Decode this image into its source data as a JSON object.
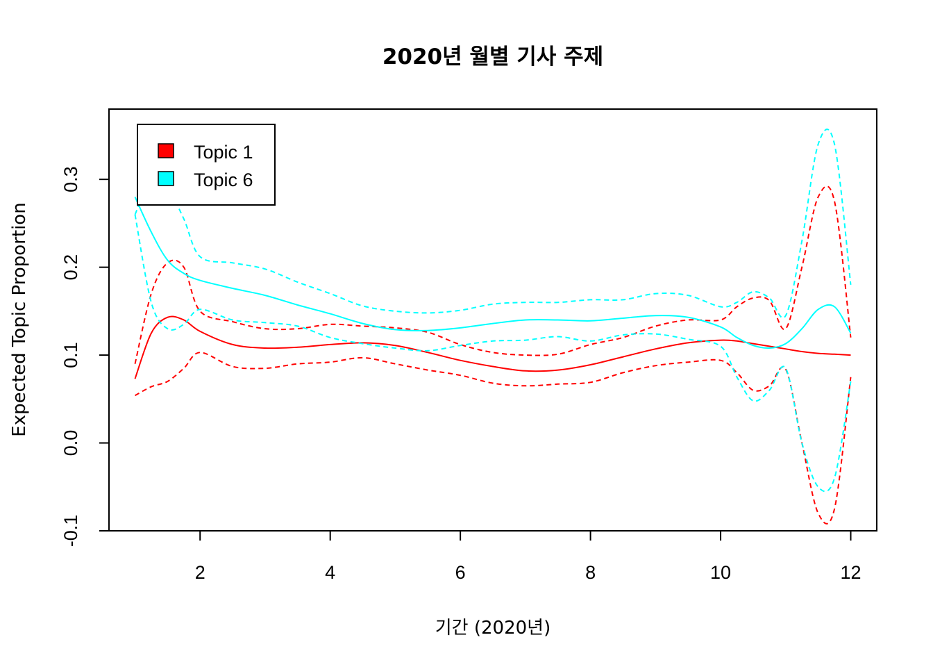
{
  "chart_data": {
    "type": "line",
    "title": "2020년 월별 기사 주제",
    "xlabel": "기간 (2020년)",
    "ylabel": "Expected Topic Proportion",
    "xlim": [
      0.6,
      12.4
    ],
    "ylim": [
      -0.1,
      0.38
    ],
    "x_ticks": [
      2,
      4,
      6,
      8,
      10,
      12
    ],
    "y_ticks": [
      -0.1,
      0.0,
      0.1,
      0.2,
      0.3
    ],
    "x_tick_labels": [
      "2",
      "4",
      "6",
      "8",
      "10",
      "12"
    ],
    "y_tick_labels": [
      "-0.1",
      "0.0",
      "0.1",
      "0.2",
      "0.3"
    ],
    "legend_position": "top-left",
    "x": [
      1,
      1.25,
      1.5,
      1.75,
      2,
      2.5,
      3,
      3.5,
      4,
      4.5,
      5,
      5.5,
      6,
      6.5,
      7,
      7.5,
      8,
      8.5,
      9,
      9.5,
      10,
      10.25,
      10.5,
      10.75,
      11,
      11.25,
      11.5,
      11.75,
      12
    ],
    "series": [
      {
        "name": "Topic 1",
        "color": "#FF0000",
        "mean": [
          0.073,
          0.125,
          0.143,
          0.14,
          0.127,
          0.112,
          0.108,
          0.109,
          0.112,
          0.114,
          0.111,
          0.103,
          0.094,
          0.087,
          0.082,
          0.083,
          0.089,
          0.098,
          0.107,
          0.114,
          0.117,
          0.116,
          0.113,
          0.11,
          0.107,
          0.104,
          0.102,
          0.101,
          0.1
        ],
        "upper": [
          0.09,
          0.17,
          0.205,
          0.2,
          0.15,
          0.138,
          0.13,
          0.13,
          0.135,
          0.133,
          0.131,
          0.126,
          0.112,
          0.103,
          0.1,
          0.101,
          0.112,
          0.12,
          0.133,
          0.14,
          0.14,
          0.155,
          0.165,
          0.162,
          0.13,
          0.2,
          0.28,
          0.275,
          0.12
        ],
        "lower": [
          0.054,
          0.064,
          0.07,
          0.085,
          0.103,
          0.087,
          0.085,
          0.09,
          0.092,
          0.097,
          0.09,
          0.083,
          0.077,
          0.068,
          0.065,
          0.067,
          0.069,
          0.08,
          0.088,
          0.092,
          0.094,
          0.08,
          0.06,
          0.065,
          0.084,
          0.0,
          -0.08,
          -0.075,
          0.075
        ]
      },
      {
        "name": "Topic 6",
        "color": "#00FFFF",
        "mean": [
          0.28,
          0.24,
          0.208,
          0.193,
          0.185,
          0.176,
          0.168,
          0.157,
          0.147,
          0.136,
          0.129,
          0.128,
          0.131,
          0.136,
          0.14,
          0.14,
          0.139,
          0.142,
          0.145,
          0.143,
          0.132,
          0.12,
          0.111,
          0.108,
          0.113,
          0.13,
          0.152,
          0.155,
          0.125
        ],
        "upper": [
          0.26,
          0.3,
          0.29,
          0.255,
          0.212,
          0.205,
          0.198,
          0.183,
          0.17,
          0.156,
          0.15,
          0.148,
          0.151,
          0.158,
          0.16,
          0.16,
          0.163,
          0.163,
          0.17,
          0.168,
          0.155,
          0.16,
          0.172,
          0.165,
          0.145,
          0.23,
          0.34,
          0.34,
          0.18
        ],
        "lower": [
          0.26,
          0.16,
          0.13,
          0.135,
          0.152,
          0.14,
          0.137,
          0.133,
          0.12,
          0.113,
          0.108,
          0.105,
          0.111,
          0.116,
          0.117,
          0.121,
          0.116,
          0.123,
          0.124,
          0.118,
          0.11,
          0.075,
          0.048,
          0.06,
          0.085,
          0.0,
          -0.05,
          -0.04,
          0.07
        ]
      }
    ]
  }
}
